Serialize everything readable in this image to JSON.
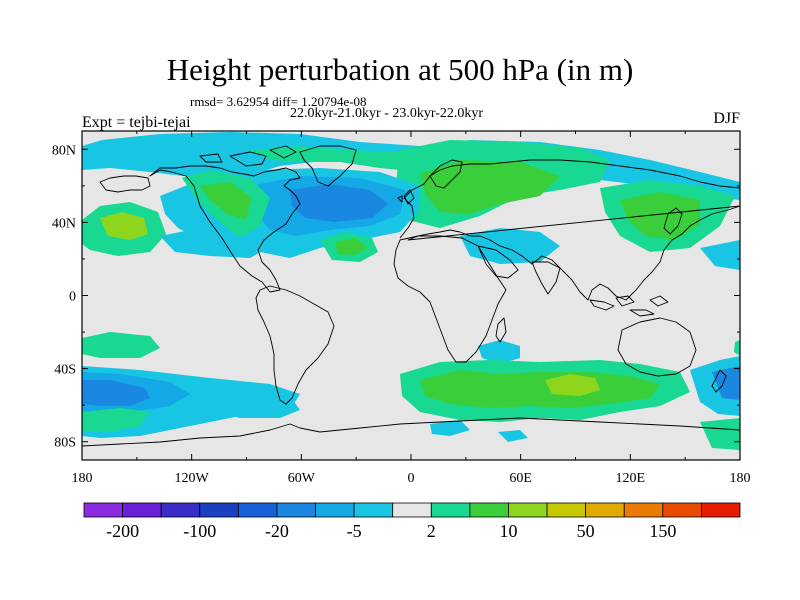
{
  "title": "Height perturbation at 500 hPa (in m)",
  "stats": "rmsd= 3.62954 diff= 1.20794e-08",
  "period": "22.0kyr-21.0kyr - 23.0kyr-22.0kyr",
  "left_label": "Expt = tejbi-tejai",
  "right_label": "DJF",
  "map": {
    "projection": "cylindrical-equidistant",
    "lon_range": [
      -180,
      180
    ],
    "lat_range": [
      -90,
      90
    ],
    "x_ticks": [
      {
        "value": -180,
        "label": "180"
      },
      {
        "value": -120,
        "label": "120W"
      },
      {
        "value": -60,
        "label": "60W"
      },
      {
        "value": 0,
        "label": "0"
      },
      {
        "value": 60,
        "label": "60E"
      },
      {
        "value": 120,
        "label": "120E"
      },
      {
        "value": 180,
        "label": "180"
      }
    ],
    "y_ticks": [
      {
        "value": 80,
        "label": "80N"
      },
      {
        "value": 40,
        "label": "40N"
      },
      {
        "value": 0,
        "label": "0"
      },
      {
        "value": -40,
        "label": "40S"
      },
      {
        "value": -80,
        "label": "80S"
      }
    ],
    "background_color": "#e6e6e6",
    "coastline_color": "#000000"
  },
  "colorbar": {
    "colors": [
      "#8a2be2",
      "#6a1fd8",
      "#3a2cc8",
      "#1a3fc0",
      "#1660d8",
      "#1a88e0",
      "#14a8e6",
      "#18c6e4",
      "#e6e6e6",
      "#18d892",
      "#3ace3a",
      "#8ed61e",
      "#c8c800",
      "#e0aa00",
      "#ea7a00",
      "#ea4a00",
      "#e61c00"
    ],
    "labels": [
      {
        "boundary": 1,
        "text": "-200"
      },
      {
        "boundary": 3,
        "text": "-100"
      },
      {
        "boundary": 5,
        "text": "-20"
      },
      {
        "boundary": 7,
        "text": "-5"
      },
      {
        "boundary": 9,
        "text": "2"
      },
      {
        "boundary": 11,
        "text": "10"
      },
      {
        "boundary": 13,
        "text": "50"
      },
      {
        "boundary": 15,
        "text": "150"
      }
    ]
  }
}
